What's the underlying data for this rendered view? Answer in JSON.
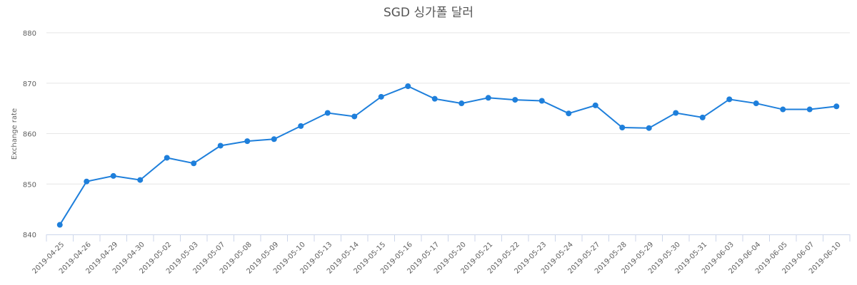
{
  "chart_data": {
    "type": "line",
    "title": "SGD 싱가폴 달러",
    "xlabel": "",
    "ylabel": "Exchange rate",
    "ylim": [
      840,
      880
    ],
    "yticks": [
      840,
      850,
      860,
      870,
      880
    ],
    "grid": true,
    "categories": [
      "2019-04-25",
      "2019-04-26",
      "2019-04-29",
      "2019-04-30",
      "2019-05-02",
      "2019-05-03",
      "2019-05-07",
      "2019-05-08",
      "2019-05-09",
      "2019-05-10",
      "2019-05-13",
      "2019-05-14",
      "2019-05-15",
      "2019-05-16",
      "2019-05-17",
      "2019-05-20",
      "2019-05-21",
      "2019-05-22",
      "2019-05-23",
      "2019-05-24",
      "2019-05-27",
      "2019-05-28",
      "2019-05-29",
      "2019-05-30",
      "2019-05-31",
      "2019-06-03",
      "2019-06-04",
      "2019-06-05",
      "2019-06-07",
      "2019-06-10"
    ],
    "series": [
      {
        "values": [
          841.9,
          850.5,
          851.6,
          850.8,
          855.2,
          854.1,
          857.6,
          858.5,
          858.9,
          861.5,
          864.1,
          863.4,
          867.3,
          869.4,
          866.9,
          866.0,
          867.1,
          866.7,
          866.5,
          864.0,
          865.6,
          861.2,
          861.1,
          864.1,
          863.2,
          866.8,
          866.0,
          864.8,
          864.8,
          865.4
        ]
      }
    ],
    "color": "#1e7fdb"
  }
}
